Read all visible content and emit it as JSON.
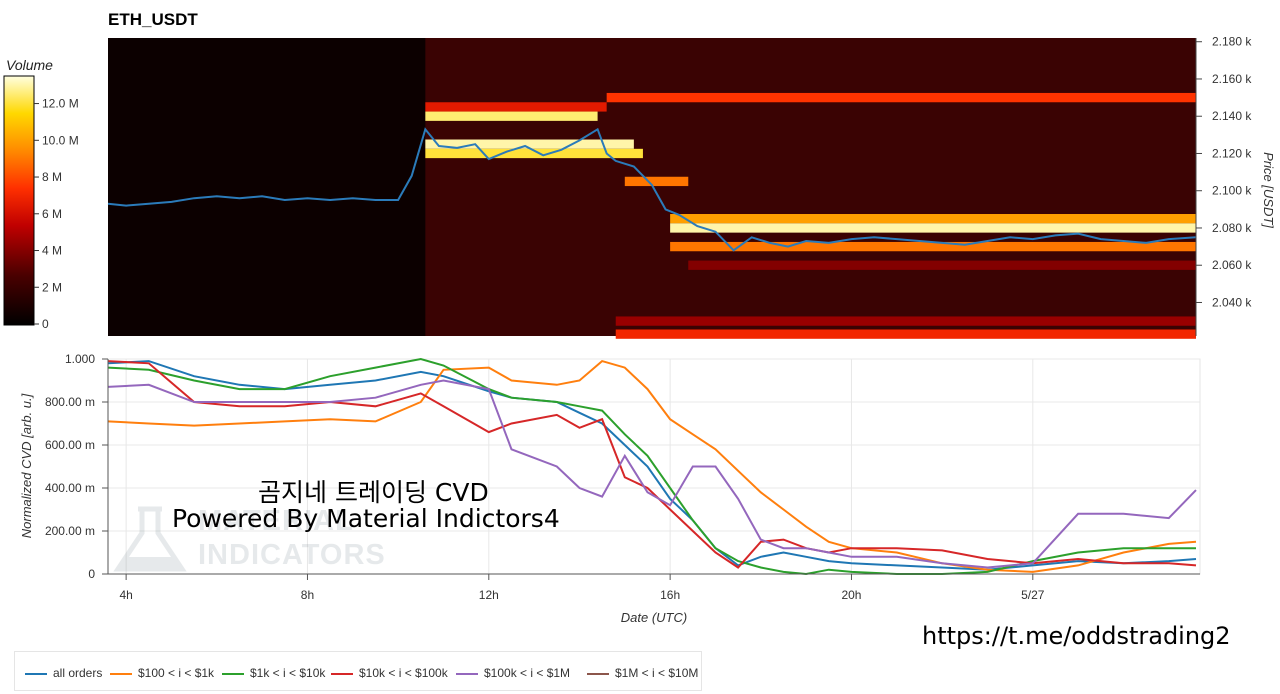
{
  "title": "ETH_USDT",
  "colorbar": {
    "label": "Volume",
    "ticks": [
      "0",
      "2 M",
      "4 M",
      "6 M",
      "8 M",
      "10.0 M",
      "12.0 M"
    ],
    "tick_values": [
      0,
      2,
      4,
      6,
      8,
      10,
      12
    ],
    "max": 13.5
  },
  "price_axis": {
    "label": "Price [USDT]",
    "ticks": [
      "2.040 k",
      "2.060 k",
      "2.080 k",
      "2.100 k",
      "2.120 k",
      "2.140 k",
      "2.160 k",
      "2.180 k"
    ],
    "tick_values": [
      2040,
      2060,
      2080,
      2100,
      2120,
      2140,
      2160,
      2180
    ],
    "range": [
      2022,
      2182
    ]
  },
  "cvd_axis": {
    "label": "Normalized CVD [arb. u.]",
    "ticks": [
      "0",
      "200.00 m",
      "400.00 m",
      "600.00 m",
      "800.00 m",
      "1.000"
    ],
    "tick_values": [
      0,
      0.2,
      0.4,
      0.6,
      0.8,
      1.0
    ]
  },
  "x_axis": {
    "label": "Date (UTC)",
    "ticks": [
      "4h",
      "8h",
      "12h",
      "16h",
      "20h",
      "5/27"
    ],
    "tick_hours": [
      4,
      8,
      12,
      16,
      20,
      24
    ],
    "range_hours": [
      3.6,
      27.6
    ]
  },
  "overlay_text": {
    "line1": "곰지네 트레이딩 CVD",
    "line2": "Powered By Material Indictors4"
  },
  "watermark": {
    "line1": "MATERIAL",
    "line2": "INDICATORS"
  },
  "telegram_url": "https://t.me/oddstrading2",
  "legend": [
    {
      "name": "all orders",
      "color": "#1f77b4"
    },
    {
      "name": "$100 < i < $1k",
      "color": "#ff7f0e"
    },
    {
      "name": "$1k < i < $10k",
      "color": "#2ca02c"
    },
    {
      "name": "$10k < i < $100k",
      "color": "#d62728"
    },
    {
      "name": "$100k < i < $1M",
      "color": "#9467bd"
    },
    {
      "name": "$1M < i < $10M",
      "color": "#8c564b"
    }
  ],
  "chart_data": [
    {
      "type": "heatmap",
      "title": "ETH_USDT",
      "ylabel": "Price [USDT]",
      "colorbar_label": "Volume",
      "ylim": [
        2022,
        2182
      ],
      "liquidity_bands": [
        {
          "price": 2150,
          "start_hour": 14.6,
          "end_hour": 27.6,
          "volume_m": 7.5
        },
        {
          "price": 2145,
          "start_hour": 10.6,
          "end_hour": 14.6,
          "volume_m": 6.5
        },
        {
          "price": 2140,
          "start_hour": 10.6,
          "end_hour": 14.4,
          "volume_m": 12.5
        },
        {
          "price": 2125,
          "start_hour": 10.6,
          "end_hour": 15.2,
          "volume_m": 13.0
        },
        {
          "price": 2120,
          "start_hour": 10.6,
          "end_hour": 15.4,
          "volume_m": 12.0
        },
        {
          "price": 2105,
          "start_hour": 15.0,
          "end_hour": 16.4,
          "volume_m": 9.0
        },
        {
          "price": 2085,
          "start_hour": 16.0,
          "end_hour": 27.6,
          "volume_m": 10.0
        },
        {
          "price": 2080,
          "start_hour": 16.0,
          "end_hour": 27.6,
          "volume_m": 13.0
        },
        {
          "price": 2070,
          "start_hour": 16.0,
          "end_hour": 27.6,
          "volume_m": 9.0
        },
        {
          "price": 2060,
          "start_hour": 16.4,
          "end_hour": 27.6,
          "volume_m": 4.0
        },
        {
          "price": 2030,
          "start_hour": 14.8,
          "end_hour": 27.6,
          "volume_m": 4.5
        },
        {
          "price": 2023,
          "start_hour": 14.8,
          "end_hour": 27.6,
          "volume_m": 7.0
        }
      ],
      "price_line": {
        "x_hours": [
          3.6,
          4.0,
          4.5,
          5.0,
          5.5,
          6.0,
          6.5,
          7.0,
          7.5,
          8.0,
          8.5,
          9.0,
          9.5,
          10.0,
          10.3,
          10.6,
          10.9,
          11.3,
          11.7,
          12.0,
          12.4,
          12.8,
          13.2,
          13.6,
          14.0,
          14.4,
          14.6,
          14.8,
          15.2,
          15.6,
          15.9,
          16.2,
          16.6,
          17.0,
          17.4,
          17.8,
          18.2,
          18.6,
          19.0,
          19.5,
          20.0,
          20.5,
          21.0,
          21.5,
          22.0,
          22.5,
          23.0,
          23.5,
          24.0,
          24.5,
          25.0,
          25.5,
          26.0,
          26.5,
          27.0,
          27.6
        ],
        "y": [
          2093,
          2092,
          2093,
          2094,
          2096,
          2097,
          2096,
          2097,
          2095,
          2096,
          2095,
          2096,
          2095,
          2095,
          2108,
          2133,
          2124,
          2123,
          2125,
          2117,
          2121,
          2124,
          2119,
          2122,
          2127,
          2133,
          2120,
          2116,
          2113,
          2103,
          2090,
          2087,
          2081,
          2078,
          2068,
          2075,
          2072,
          2070,
          2073,
          2072,
          2074,
          2075,
          2074,
          2073,
          2072,
          2071,
          2073,
          2075,
          2074,
          2076,
          2077,
          2074,
          2073,
          2072,
          2074,
          2075
        ]
      }
    },
    {
      "type": "line",
      "xlabel": "Date (UTC)",
      "ylabel": "Normalized CVD [arb. u.]",
      "ylim": [
        0,
        1
      ],
      "x_hours": [
        3.6,
        4.5,
        5.5,
        6.5,
        7.5,
        8.5,
        9.5,
        10.5,
        11.0,
        12.0,
        12.5,
        13.5,
        14.0,
        14.5,
        15.0,
        15.5,
        16.0,
        16.5,
        17.0,
        17.5,
        18.0,
        18.5,
        19.0,
        19.5,
        20.0,
        21.0,
        22.0,
        23.0,
        24.0,
        25.0,
        26.0,
        27.0,
        27.6
      ],
      "series": [
        {
          "name": "all orders",
          "values": [
            0.98,
            0.99,
            0.92,
            0.88,
            0.86,
            0.88,
            0.9,
            0.94,
            0.92,
            0.85,
            0.82,
            0.8,
            0.75,
            0.7,
            0.6,
            0.5,
            0.35,
            0.25,
            0.12,
            0.04,
            0.08,
            0.1,
            0.08,
            0.06,
            0.05,
            0.04,
            0.03,
            0.02,
            0.04,
            0.06,
            0.05,
            0.06,
            0.07
          ]
        },
        {
          "name": "$100 < i < $1k",
          "values": [
            0.71,
            0.7,
            0.69,
            0.7,
            0.71,
            0.72,
            0.71,
            0.8,
            0.95,
            0.96,
            0.9,
            0.88,
            0.9,
            0.99,
            0.96,
            0.86,
            0.72,
            0.65,
            0.58,
            0.48,
            0.38,
            0.3,
            0.22,
            0.15,
            0.12,
            0.1,
            0.05,
            0.02,
            0.01,
            0.04,
            0.1,
            0.14,
            0.15
          ]
        },
        {
          "name": "$1k < i < $10k",
          "values": [
            0.96,
            0.95,
            0.9,
            0.86,
            0.86,
            0.92,
            0.96,
            1.0,
            0.97,
            0.86,
            0.82,
            0.8,
            0.78,
            0.76,
            0.65,
            0.55,
            0.4,
            0.25,
            0.12,
            0.06,
            0.03,
            0.01,
            0.0,
            0.02,
            0.01,
            0.0,
            0.0,
            0.01,
            0.06,
            0.1,
            0.12,
            0.12,
            0.12
          ]
        },
        {
          "name": "$10k < i < $100k",
          "values": [
            0.99,
            0.98,
            0.8,
            0.78,
            0.78,
            0.8,
            0.78,
            0.84,
            0.78,
            0.66,
            0.7,
            0.74,
            0.68,
            0.72,
            0.45,
            0.4,
            0.3,
            0.2,
            0.1,
            0.03,
            0.15,
            0.16,
            0.12,
            0.1,
            0.12,
            0.12,
            0.11,
            0.07,
            0.05,
            0.07,
            0.05,
            0.05,
            0.04
          ]
        },
        {
          "name": "$100k < i < $1M",
          "values": [
            0.87,
            0.88,
            0.8,
            0.8,
            0.8,
            0.8,
            0.82,
            0.88,
            0.9,
            0.86,
            0.58,
            0.5,
            0.4,
            0.36,
            0.55,
            0.38,
            0.32,
            0.5,
            0.5,
            0.35,
            0.16,
            0.12,
            0.12,
            0.1,
            0.08,
            0.08,
            0.05,
            0.03,
            0.05,
            0.28,
            0.28,
            0.26,
            0.39
          ]
        },
        {
          "name": "$1M < i < $10M",
          "values": []
        }
      ]
    }
  ]
}
